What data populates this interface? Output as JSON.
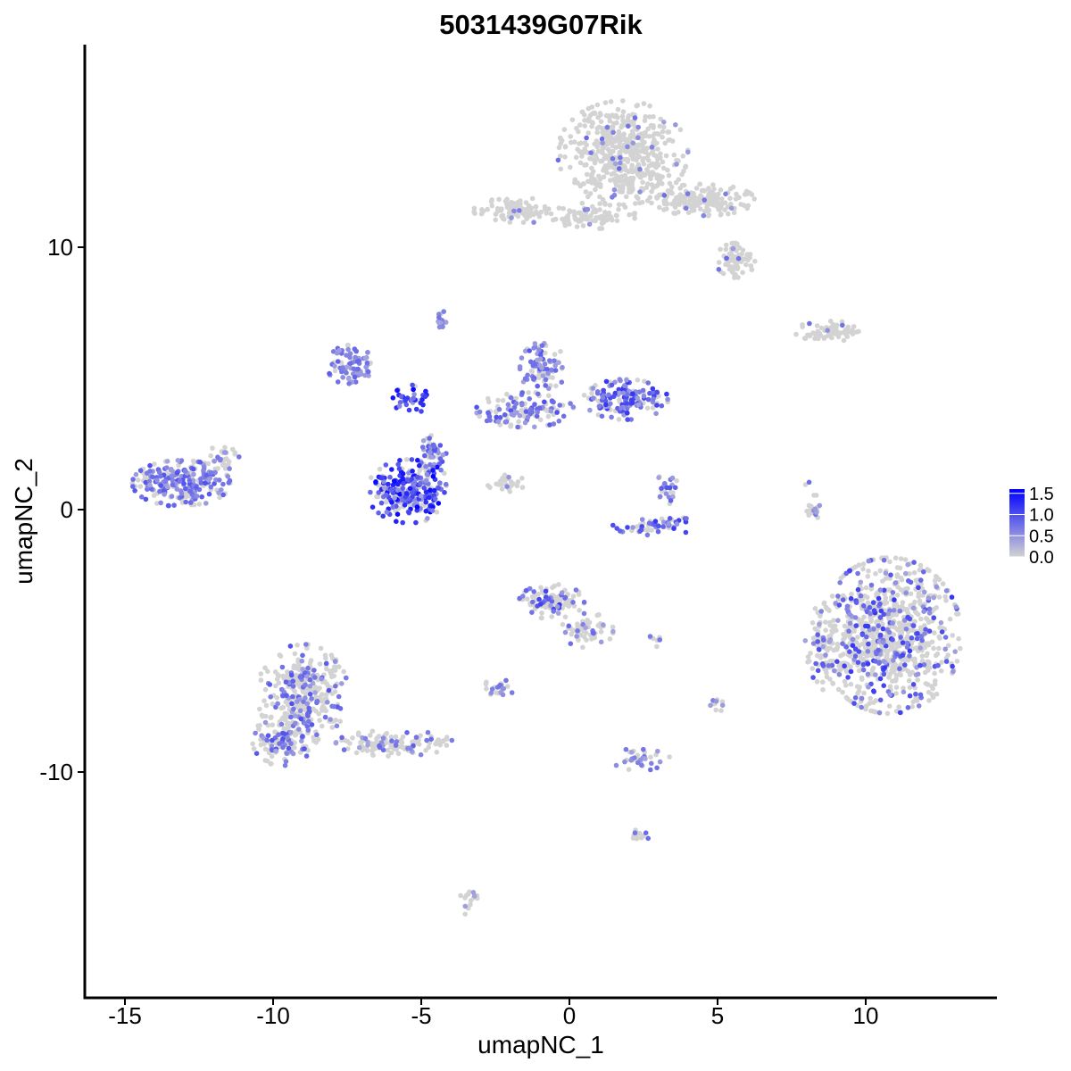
{
  "chart_data": {
    "type": "scatter",
    "title": "5031439G07Rik",
    "xlabel": "umapNC_1",
    "ylabel": "umapNC_2",
    "xlim": [
      -16.5,
      14.5
    ],
    "ylim": [
      -18.5,
      17.5
    ],
    "x_ticks": [
      -15,
      -10,
      -5,
      0,
      5,
      10
    ],
    "y_ticks": [
      -10,
      0,
      10
    ],
    "x_tick_labels": [
      "-15",
      "-10",
      "-5",
      "0",
      "5",
      "10"
    ],
    "y_tick_labels": [
      "-10",
      "0",
      "10"
    ],
    "grid": false,
    "legend": {
      "placement": "right",
      "type": "colorbar",
      "labels": [
        "1.5",
        "1.0",
        "0.5",
        "0.0"
      ],
      "range": [
        0,
        1.6
      ],
      "color_low": "#d3d3d3",
      "color_high": "#0000ff"
    },
    "point_color_low": "#d3d3d3",
    "point_color_high": "#0000ff",
    "clusters": [
      {
        "cx": 1.8,
        "cy": 13.6,
        "rx": 2.0,
        "ry": 1.8,
        "n": 520,
        "frac": 0.06,
        "max": 0.8
      },
      {
        "cx": 4.5,
        "cy": 11.8,
        "rx": 1.6,
        "ry": 0.55,
        "n": 180,
        "frac": 0.04,
        "max": 0.8
      },
      {
        "cx": 5.6,
        "cy": 9.5,
        "rx": 0.6,
        "ry": 0.6,
        "n": 80,
        "frac": 0.05,
        "max": 0.8
      },
      {
        "cx": 0.8,
        "cy": 11.2,
        "rx": 1.3,
        "ry": 0.45,
        "n": 90,
        "frac": 0.04,
        "max": 0.8
      },
      {
        "cx": -1.8,
        "cy": 11.4,
        "rx": 1.3,
        "ry": 0.45,
        "n": 90,
        "frac": 0.05,
        "max": 0.8
      },
      {
        "cx": 8.8,
        "cy": 6.8,
        "rx": 1.1,
        "ry": 0.35,
        "n": 70,
        "frac": 0.12,
        "max": 0.8
      },
      {
        "cx": -7.4,
        "cy": 5.5,
        "rx": 0.7,
        "ry": 0.7,
        "n": 80,
        "frac": 0.8,
        "max": 0.9
      },
      {
        "cx": -4.3,
        "cy": 7.2,
        "rx": 0.2,
        "ry": 0.35,
        "n": 15,
        "frac": 0.7,
        "max": 0.8
      },
      {
        "cx": -5.3,
        "cy": 4.2,
        "rx": 0.6,
        "ry": 0.5,
        "n": 40,
        "frac": 0.8,
        "max": 1.6
      },
      {
        "cx": -4.6,
        "cy": 2.1,
        "rx": 0.4,
        "ry": 0.7,
        "n": 45,
        "frac": 0.8,
        "max": 1.0
      },
      {
        "cx": -5.4,
        "cy": 0.7,
        "rx": 1.3,
        "ry": 1.1,
        "n": 260,
        "frac": 0.75,
        "max": 1.6
      },
      {
        "cx": -1.5,
        "cy": 3.8,
        "rx": 1.5,
        "ry": 0.6,
        "n": 120,
        "frac": 0.55,
        "max": 1.0
      },
      {
        "cx": -0.9,
        "cy": 5.4,
        "rx": 0.7,
        "ry": 0.9,
        "n": 90,
        "frac": 0.6,
        "max": 1.0
      },
      {
        "cx": 1.9,
        "cy": 4.2,
        "rx": 1.3,
        "ry": 0.7,
        "n": 160,
        "frac": 0.75,
        "max": 1.2
      },
      {
        "cx": -2.0,
        "cy": 1.0,
        "rx": 0.7,
        "ry": 0.3,
        "n": 25,
        "frac": 0.2,
        "max": 0.8
      },
      {
        "cx": 3.3,
        "cy": 0.7,
        "rx": 0.35,
        "ry": 0.7,
        "n": 25,
        "frac": 0.7,
        "max": 1.0
      },
      {
        "cx": 2.9,
        "cy": -0.6,
        "rx": 1.3,
        "ry": 0.35,
        "n": 60,
        "frac": 0.6,
        "max": 1.2
      },
      {
        "cx": 8.2,
        "cy": 0.2,
        "rx": 0.35,
        "ry": 0.9,
        "n": 20,
        "frac": 0.3,
        "max": 0.8
      },
      {
        "cx": -13.1,
        "cy": 1.0,
        "rx": 1.5,
        "ry": 0.8,
        "n": 260,
        "frac": 0.65,
        "max": 1.0
      },
      {
        "cx": -11.7,
        "cy": 2.0,
        "rx": 0.5,
        "ry": 0.5,
        "n": 30,
        "frac": 0.35,
        "max": 0.8
      },
      {
        "cx": 10.8,
        "cy": -4.8,
        "rx": 2.2,
        "ry": 2.7,
        "n": 900,
        "frac": 0.22,
        "max": 1.2
      },
      {
        "cx": 8.5,
        "cy": -5.3,
        "rx": 0.5,
        "ry": 1.5,
        "n": 60,
        "frac": 0.3,
        "max": 1.0
      },
      {
        "cx": -0.6,
        "cy": -3.5,
        "rx": 1.0,
        "ry": 0.6,
        "n": 110,
        "frac": 0.25,
        "max": 1.2
      },
      {
        "cx": 0.6,
        "cy": -4.6,
        "rx": 0.8,
        "ry": 0.6,
        "n": 60,
        "frac": 0.25,
        "max": 1.0
      },
      {
        "cx": -9.0,
        "cy": -7.0,
        "rx": 1.4,
        "ry": 1.7,
        "n": 320,
        "frac": 0.3,
        "max": 1.0
      },
      {
        "cx": -9.6,
        "cy": -8.8,
        "rx": 1.0,
        "ry": 0.9,
        "n": 140,
        "frac": 0.35,
        "max": 1.0
      },
      {
        "cx": -5.9,
        "cy": -8.9,
        "rx": 1.8,
        "ry": 0.45,
        "n": 130,
        "frac": 0.25,
        "max": 0.9
      },
      {
        "cx": -2.4,
        "cy": -6.8,
        "rx": 0.5,
        "ry": 0.3,
        "n": 25,
        "frac": 0.4,
        "max": 0.8
      },
      {
        "cx": 2.4,
        "cy": -9.5,
        "rx": 0.9,
        "ry": 0.4,
        "n": 35,
        "frac": 0.4,
        "max": 0.8
      },
      {
        "cx": 2.3,
        "cy": -12.4,
        "rx": 0.4,
        "ry": 0.2,
        "n": 12,
        "frac": 0.4,
        "max": 0.8
      },
      {
        "cx": -3.4,
        "cy": -14.9,
        "rx": 0.3,
        "ry": 0.5,
        "n": 15,
        "frac": 0.4,
        "max": 0.8
      },
      {
        "cx": 5.0,
        "cy": -7.4,
        "rx": 0.3,
        "ry": 0.3,
        "n": 10,
        "frac": 0.5,
        "max": 0.8
      },
      {
        "cx": 2.9,
        "cy": -5.0,
        "rx": 0.3,
        "ry": 0.2,
        "n": 8,
        "frac": 0.5,
        "max": 0.8
      }
    ]
  }
}
